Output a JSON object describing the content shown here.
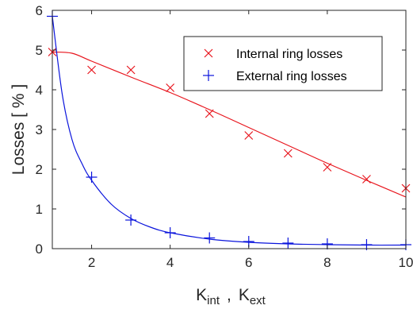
{
  "chart_data": {
    "type": "scatter",
    "title": "",
    "ylabel": "Losses [ % ]",
    "xlabel": {
      "part1_main": "K",
      "part1_sub": "int",
      "separator": ",",
      "part2_main": "K",
      "part2_sub": "ext"
    },
    "xlim": [
      1,
      10
    ],
    "ylim": [
      0,
      6
    ],
    "x_ticks": [
      2,
      4,
      6,
      8,
      10
    ],
    "y_ticks": [
      0,
      1,
      2,
      3,
      4,
      5,
      6
    ],
    "grid": false,
    "legend_position": "top-right",
    "series": [
      {
        "name": "Internal ring losses",
        "marker": "x",
        "color": "#e8141c",
        "x": [
          1,
          2,
          3,
          4,
          5,
          6,
          7,
          8,
          9,
          10
        ],
        "y": [
          4.95,
          4.5,
          4.5,
          4.05,
          3.4,
          2.85,
          2.4,
          2.05,
          1.75,
          1.52
        ],
        "fit": {
          "x": [
            1,
            1.5,
            2,
            3,
            4,
            5,
            6,
            7,
            8,
            9,
            10
          ],
          "y": [
            4.95,
            4.92,
            4.72,
            4.32,
            3.93,
            3.5,
            3.05,
            2.6,
            2.15,
            1.72,
            1.3
          ]
        }
      },
      {
        "name": "External ring losses",
        "marker": "+",
        "color": "#0a14dc",
        "x": [
          1,
          2,
          3,
          4,
          5,
          6,
          7,
          8,
          9,
          10
        ],
        "y": [
          5.85,
          1.8,
          0.72,
          0.4,
          0.27,
          0.18,
          0.14,
          0.12,
          0.1,
          0.1
        ],
        "fit": {
          "x": [
            1,
            1.25,
            1.5,
            1.75,
            2,
            2.5,
            3,
            3.5,
            4,
            5,
            6,
            7,
            8,
            9,
            10
          ],
          "y": [
            5.85,
            3.9,
            2.75,
            2.15,
            1.72,
            1.12,
            0.76,
            0.54,
            0.4,
            0.24,
            0.16,
            0.12,
            0.1,
            0.09,
            0.09
          ]
        }
      }
    ]
  }
}
